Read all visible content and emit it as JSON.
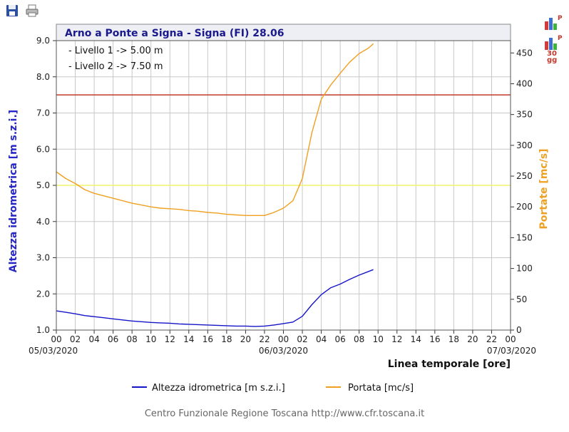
{
  "toolbar": {
    "icons": [
      "save-icon",
      "print-icon"
    ]
  },
  "side_buttons": {
    "bar_icon_letter": "P",
    "days_label_line1": "30",
    "days_label_line2": "gg"
  },
  "chart_data": {
    "type": "line",
    "title": "Arno a Ponte a Signa - Signa (FI) 28.06",
    "annotations": [
      "- Livello 1 -> 5.00 m",
      "- Livello 2 -> 7.50 m"
    ],
    "xlabel": "Linea temporale [ore]",
    "ylabel_left": "Altezza idrometrica [m s.z.i.]",
    "ylabel_right": "Portate [mc/s]",
    "x_ticks": [
      "00",
      "02",
      "04",
      "06",
      "08",
      "10",
      "12",
      "14",
      "16",
      "18",
      "20",
      "22",
      "00",
      "02",
      "04",
      "06",
      "08",
      "10",
      "12",
      "14",
      "16",
      "18",
      "20",
      "22",
      "00"
    ],
    "date_labels": [
      {
        "hour": 0,
        "text": "05/03/2020"
      },
      {
        "hour": 24,
        "text": "06/03/2020"
      },
      {
        "hour": 48,
        "text": "07/03/2020"
      }
    ],
    "xlim": [
      0,
      48
    ],
    "ylim_left": [
      1.0,
      9.0
    ],
    "ylim_right": [
      0,
      470
    ],
    "y_ticks_left": [
      "1.0",
      "2.0",
      "3.0",
      "4.0",
      "5.0",
      "6.0",
      "7.0",
      "8.0",
      "9.0"
    ],
    "y_ticks_right": [
      "0",
      "50",
      "100",
      "150",
      "200",
      "250",
      "300",
      "350",
      "400",
      "450"
    ],
    "thresholds": [
      {
        "value": 5.0,
        "color": "#f2f26e",
        "label": "Livello 1"
      },
      {
        "value": 7.5,
        "color": "#c0392b",
        "label": "Livello 2"
      }
    ],
    "grid": true,
    "legend_position": "bottom",
    "series": [
      {
        "name": "Altezza idrometrica [m s.z.i.]",
        "axis": "left",
        "color": "#1515c8",
        "x": [
          0,
          1,
          2,
          3,
          4,
          5,
          6,
          7,
          8,
          9,
          10,
          11,
          12,
          13,
          14,
          15,
          16,
          17,
          18,
          19,
          20,
          21,
          22,
          23,
          24,
          25,
          26,
          27,
          28,
          29,
          30,
          31,
          32,
          33,
          33.5
        ],
        "y": [
          1.53,
          1.49,
          1.45,
          1.4,
          1.37,
          1.34,
          1.31,
          1.28,
          1.25,
          1.23,
          1.21,
          1.2,
          1.19,
          1.17,
          1.16,
          1.15,
          1.14,
          1.13,
          1.12,
          1.11,
          1.11,
          1.1,
          1.11,
          1.14,
          1.18,
          1.22,
          1.38,
          1.7,
          1.98,
          2.17,
          2.27,
          2.4,
          2.52,
          2.62,
          2.67
        ]
      },
      {
        "name": "Portata [mc/s]",
        "axis": "right",
        "color": "#f0a020",
        "x": [
          0,
          1,
          2,
          3,
          4,
          5,
          6,
          7,
          8,
          9,
          10,
          11,
          12,
          13,
          14,
          15,
          16,
          17,
          18,
          19,
          20,
          21,
          22,
          23,
          24,
          25,
          26,
          27,
          28,
          29,
          30,
          31,
          32,
          33,
          33.5
        ],
        "y": [
          257,
          246,
          238,
          228,
          222,
          218,
          214,
          210,
          206,
          203,
          200,
          198,
          197,
          196,
          194,
          193,
          191,
          190,
          188,
          187,
          186,
          186,
          186,
          191,
          198,
          210,
          246,
          320,
          375,
          398,
          417,
          435,
          449,
          458,
          465
        ]
      }
    ]
  },
  "footer": {
    "text": "Centro Funzionale Regione Toscana http://www.cfr.toscana.it"
  }
}
